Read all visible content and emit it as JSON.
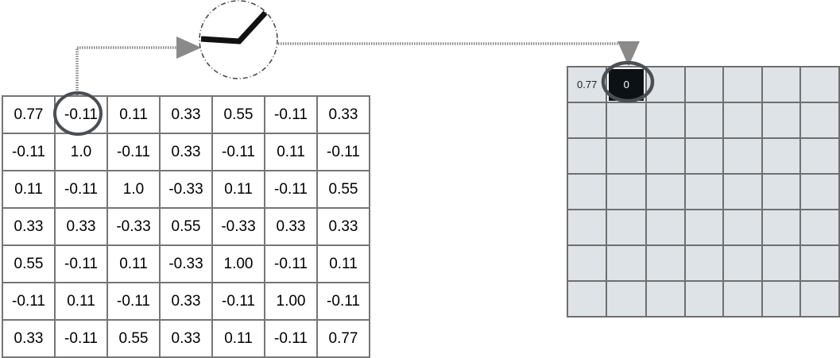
{
  "input_matrix": {
    "rows": [
      [
        "0.77",
        "-0.11",
        "0.11",
        "0.33",
        "0.55",
        "-0.11",
        "0.33"
      ],
      [
        "-0.11",
        "1.0",
        "-0.11",
        "0.33",
        "-0.11",
        "0.11",
        "-0.11"
      ],
      [
        "0.11",
        "-0.11",
        "1.0",
        "-0.33",
        "0.11",
        "-0.11",
        "0.55"
      ],
      [
        "0.33",
        "0.33",
        "-0.33",
        "0.55",
        "-0.33",
        "0.33",
        "0.33"
      ],
      [
        "0.55",
        "-0.11",
        "0.11",
        "-0.33",
        "1.00",
        "-0.11",
        "0.11"
      ],
      [
        "-0.11",
        "0.11",
        "-0.11",
        "0.33",
        "-0.11",
        "1.00",
        "-0.11"
      ],
      [
        "0.33",
        "-0.11",
        "0.55",
        "0.33",
        "0.11",
        "-0.11",
        "0.77"
      ]
    ],
    "highlighted_cell": {
      "row": 0,
      "col": 1
    }
  },
  "output_matrix": {
    "size": 7,
    "values": {
      "0,0": "0.77",
      "0,1": "0"
    },
    "highlighted_cell": {
      "row": 0,
      "col": 1
    }
  },
  "colors": {
    "grid_line": "#767676",
    "output_fill": "#dde3e6",
    "highlight_ring": "#4a4f54",
    "active_cell": "#0c1116",
    "arrow": "#8a8a8a",
    "relu_curve": "#111111"
  },
  "function_icon": "relu-graph-icon"
}
